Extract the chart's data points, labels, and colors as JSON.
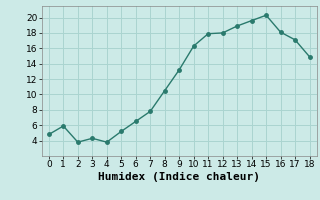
{
  "x": [
    0,
    1,
    2,
    3,
    4,
    5,
    6,
    7,
    8,
    9,
    10,
    11,
    12,
    13,
    14,
    15,
    16,
    17,
    18
  ],
  "y": [
    4.8,
    5.9,
    3.8,
    4.3,
    3.8,
    5.2,
    6.5,
    7.8,
    10.5,
    13.2,
    16.3,
    17.9,
    18.0,
    18.9,
    19.6,
    20.3,
    18.1,
    17.1,
    14.9
  ],
  "line_color": "#2a7a6d",
  "marker_color": "#2a7a6d",
  "bg_color": "#cceae7",
  "grid_color": "#aad4d0",
  "xlabel": "Humidex (Indice chaleur)",
  "xlabel_fontsize": 8,
  "xlim": [
    -0.5,
    18.5
  ],
  "ylim": [
    2,
    21.5
  ],
  "yticks": [
    4,
    6,
    8,
    10,
    12,
    14,
    16,
    18,
    20
  ],
  "xticks": [
    0,
    1,
    2,
    3,
    4,
    5,
    6,
    7,
    8,
    9,
    10,
    11,
    12,
    13,
    14,
    15,
    16,
    17,
    18
  ],
  "tick_fontsize": 6.5,
  "marker_size": 2.5,
  "line_width": 1.0
}
